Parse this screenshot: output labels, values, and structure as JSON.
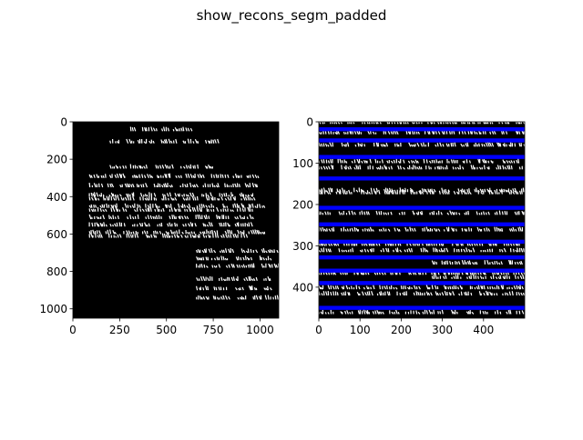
{
  "figure": {
    "title": "show_recons_segm_padded"
  },
  "colors": {
    "background": "#000000",
    "ink": "#ffffff",
    "segmentation_line": "#0000ff",
    "axes": "#000000"
  },
  "chart_data": [
    {
      "type": "image",
      "panel": "left",
      "title": "",
      "xlabel": "",
      "ylabel": "",
      "xlim": [
        0,
        1100
      ],
      "ylim": [
        1050,
        0
      ],
      "xticks": [
        0,
        250,
        500,
        750,
        1000
      ],
      "yticks": [
        0,
        200,
        400,
        600,
        800,
        1000
      ],
      "content": "reconstructed fragment image, white handwritten text on black background",
      "text_rows_y": [
        50,
        115,
        250,
        300,
        350,
        400,
        420,
        460,
        480,
        520,
        560,
        600,
        620,
        700,
        740,
        780,
        850,
        900,
        950
      ]
    },
    {
      "type": "image",
      "panel": "right",
      "title": "",
      "xlabel": "",
      "ylabel": "",
      "xlim": [
        0,
        500
      ],
      "ylim": [
        475,
        0
      ],
      "xticks": [
        0,
        100,
        200,
        300,
        400
      ],
      "yticks": [
        0,
        100,
        200,
        300,
        400
      ],
      "content": "padded fragment image with blue line segmentation overlay",
      "segmentation_lines_y": [
        18,
        45,
        85,
        137,
        208,
        248,
        290,
        328,
        360,
        390,
        450
      ],
      "text_rows_y": [
        5,
        30,
        60,
        100,
        115,
        170,
        175,
        225,
        265,
        300,
        315,
        345,
        370,
        380,
        405,
        420,
        465
      ]
    }
  ]
}
